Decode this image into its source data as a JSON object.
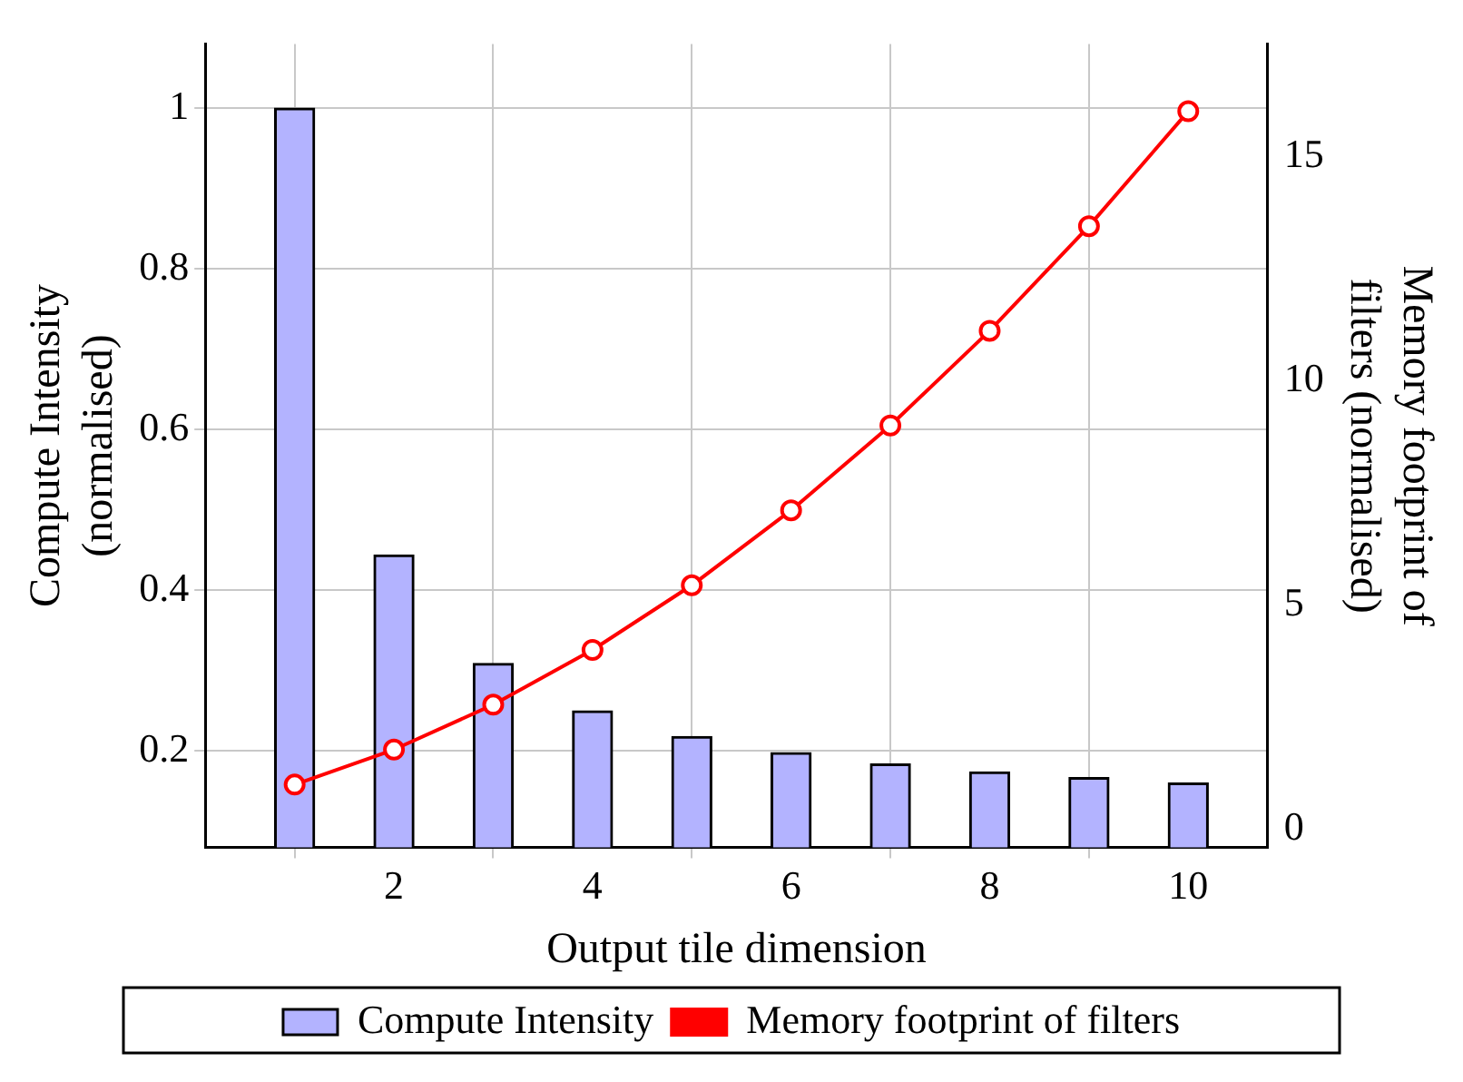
{
  "chart_data": {
    "type": "bar",
    "x": [
      1,
      2,
      3,
      4,
      5,
      6,
      7,
      8,
      9,
      10
    ],
    "xlabel": "Output tile dimension",
    "ylabel": "Compute Intensity (normalised)",
    "y2label": "Memory footprint of filters (normalised)",
    "xlim": [
      0.1,
      10.8
    ],
    "xticks": [
      2,
      4,
      6,
      8,
      10
    ],
    "ylim": [
      0.08,
      1.08
    ],
    "yticks": [
      0.2,
      0.4,
      0.6,
      0.8,
      1
    ],
    "y2lim": [
      -0.4,
      17.5
    ],
    "y2ticks": [
      0,
      5,
      10,
      15
    ],
    "series": [
      {
        "name": "Compute Intensity",
        "color": "#b3b3ff",
        "values": [
          1,
          0.444,
          0.309,
          0.25,
          0.218,
          0.198,
          0.184,
          0.174,
          0.167,
          0.16
        ]
      },
      {
        "name": "Memory footprint of filters",
        "type": "line",
        "axis": "y2",
        "color": "#ff0000",
        "marker": "circle",
        "values": [
          1,
          1.78,
          2.78,
          4,
          5.44,
          7.11,
          9,
          11.11,
          13.44,
          16
        ]
      }
    ],
    "grid": true,
    "legend": "bottom"
  }
}
